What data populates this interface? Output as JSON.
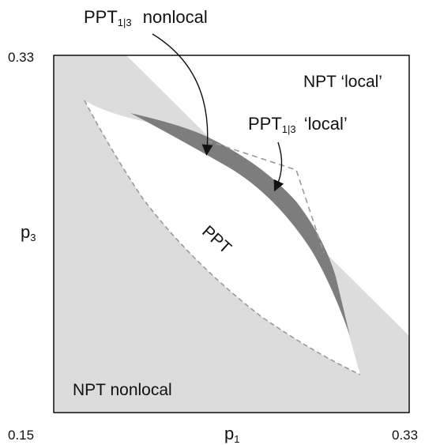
{
  "axes": {
    "x_label": "p",
    "x_label_sub": "1",
    "y_label": "p",
    "y_label_sub": "3",
    "x_min": "0.15",
    "x_max": "0.33",
    "y_max": "0.33"
  },
  "labels": {
    "ppt1_nonlocal_main": "PPT",
    "ppt1_nonlocal_sub": "1|3",
    "ppt1_nonlocal_rest": "nonlocal",
    "ppt13_local_main": "PPT",
    "ppt13_local_sub": "1|3",
    "ppt13_local_rest": "‘local’",
    "npt_local": "NPT ‘local’",
    "ppt": "PPT",
    "npt_nonlocal": "NPT nonlocal"
  },
  "colors": {
    "npt_region": "#dcdcdc",
    "ppt_region": "#ffffff",
    "ppt13_nonlocal_band": "#7d7d7d",
    "dashed_boundary": "#9a9a9a",
    "frame": "#000000"
  }
}
